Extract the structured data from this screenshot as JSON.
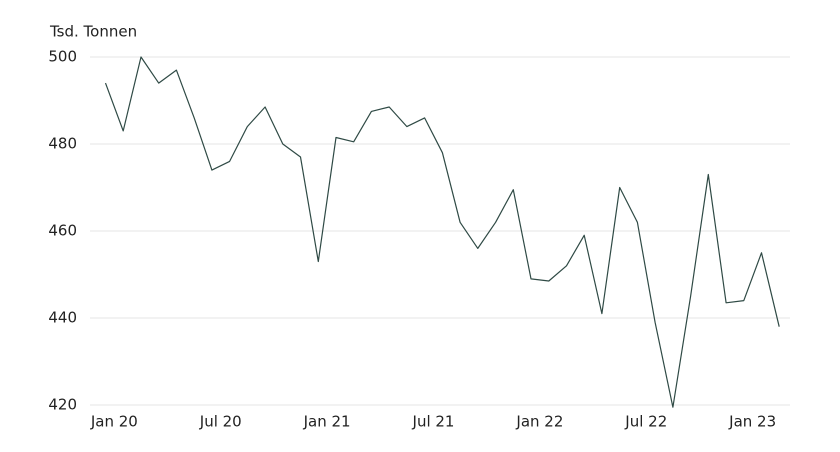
{
  "chart_data": {
    "type": "line",
    "y_label": "Tsd. Tonnen",
    "categories": [
      null,
      "Jan 20",
      null,
      null,
      null,
      null,
      null,
      "Jul 20",
      null,
      null,
      null,
      null,
      null,
      "Jan 21",
      null,
      null,
      null,
      null,
      null,
      "Jul 21",
      null,
      null,
      null,
      null,
      null,
      "Jan 22",
      null,
      null,
      null,
      null,
      null,
      "Jul 22",
      null,
      null,
      null,
      null,
      null,
      "Jan 23",
      null
    ],
    "series": [
      {
        "color": "#2f4a45",
        "values": [
          494,
          483,
          500,
          494,
          497,
          486,
          474,
          476,
          484,
          488.5,
          480,
          477,
          453,
          481.5,
          480.5,
          487.5,
          488.5,
          484,
          486,
          478,
          462,
          456,
          462,
          469.5,
          449,
          448.5,
          452,
          459,
          441,
          470,
          462,
          439,
          419.5,
          445,
          473,
          443.5,
          444,
          455,
          438
        ]
      }
    ],
    "ylim": [
      420,
      500
    ],
    "yticks": [
      420,
      440,
      460,
      480,
      500
    ],
    "grid": true
  }
}
